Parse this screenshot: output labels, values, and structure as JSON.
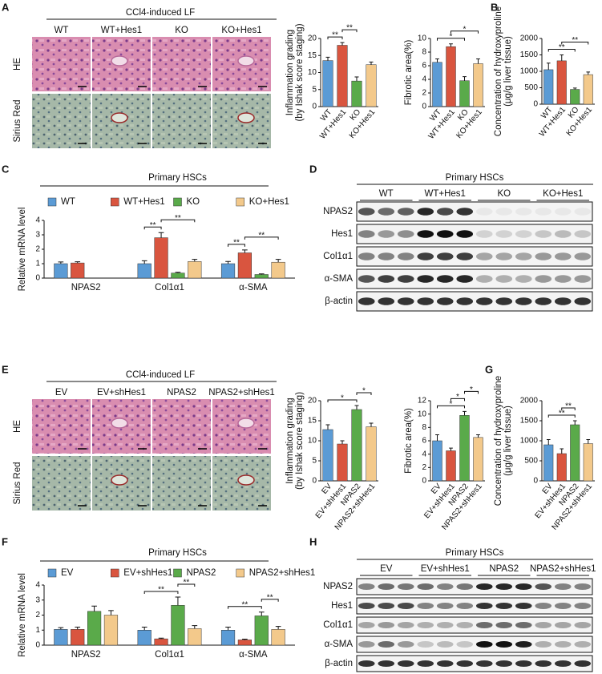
{
  "panels": {
    "A": {
      "letter": "A",
      "title": "CCl4-induced LF",
      "columns": [
        "WT",
        "WT+Hes1",
        "KO",
        "KO+Hes1"
      ],
      "rows": [
        "HE",
        "Sirius Red"
      ]
    },
    "B": {
      "letter": "B"
    },
    "C": {
      "letter": "C"
    },
    "D": {
      "letter": "D",
      "title": "Primary HSCs",
      "groups": [
        "WT",
        "WT+Hes1",
        "KO",
        "KO+Hes1"
      ],
      "rows": [
        "NPAS2",
        "Hes1",
        "Col1α1",
        "α-SMA",
        "β-actin"
      ]
    },
    "E": {
      "letter": "E",
      "title": "CCl4-induced LF",
      "columns": [
        "EV",
        "EV+shHes1",
        "NPAS2",
        "NPAS2+shHes1"
      ],
      "rows": [
        "HE",
        "Sirius Red"
      ]
    },
    "F": {
      "letter": "F"
    },
    "G": {
      "letter": "G"
    },
    "H": {
      "letter": "H",
      "title": "Primary HSCs",
      "groups": [
        "EV",
        "EV+shHes1",
        "NPAS2",
        "NPAS2+shHes1"
      ],
      "rows": [
        "NPAS2",
        "Hes1",
        "Col1α1",
        "α-SMA",
        "β-actin"
      ]
    }
  },
  "chart_data": [
    {
      "type": "bar",
      "ylabel": [
        "Inflammation grading",
        "(by Ishak score staging)"
      ],
      "categories": [
        "WT",
        "WT+Hes1",
        "KO",
        "KO+Hes1"
      ],
      "values": [
        13.5,
        18,
        7.5,
        12.3
      ],
      "errors": [
        1,
        0.8,
        1.2,
        0.8
      ],
      "colors": [
        "#5b9bd5",
        "#d9553f",
        "#5aaa4a",
        "#f3c98b"
      ],
      "ylim": [
        0,
        20
      ],
      "yticks": [
        0,
        5,
        10,
        15,
        20
      ],
      "significance": [
        {
          "from": 0,
          "to": 1,
          "label": "**"
        },
        {
          "from": 1,
          "to": 2,
          "label": "**"
        }
      ]
    },
    {
      "type": "bar",
      "ylabel": [
        "Fibrotic area(%)"
      ],
      "categories": [
        "WT",
        "WT+Hes1",
        "KO",
        "KO+Hes1"
      ],
      "values": [
        6.5,
        8.8,
        3.8,
        6.3
      ],
      "errors": [
        0.5,
        0.4,
        0.6,
        0.7
      ],
      "colors": [
        "#5b9bd5",
        "#d9553f",
        "#5aaa4a",
        "#f3c98b"
      ],
      "ylim": [
        0,
        10
      ],
      "yticks": [
        0,
        2,
        4,
        6,
        8,
        10
      ],
      "significance": [
        {
          "from": 0,
          "to": 2,
          "label": "*"
        },
        {
          "from": 1,
          "to": 3,
          "label": "*"
        }
      ]
    },
    {
      "type": "bar",
      "ylabel": [
        "Concentration of hydroxyproline",
        "(μg/g liver tissue)"
      ],
      "categories": [
        "WT",
        "WT+Hes1",
        "KO",
        "KO+Hes1"
      ],
      "values": [
        1050,
        1320,
        450,
        900
      ],
      "errors": [
        200,
        180,
        40,
        80
      ],
      "colors": [
        "#5b9bd5",
        "#d9553f",
        "#5aaa4a",
        "#f3c98b"
      ],
      "ylim": [
        0,
        2000
      ],
      "yticks": [
        0,
        500,
        1000,
        1500,
        2000
      ],
      "significance": [
        {
          "from": 0,
          "to": 2,
          "label": "**"
        },
        {
          "from": 1,
          "to": 3,
          "label": "**"
        }
      ]
    },
    {
      "type": "bar",
      "title": "Primary HSCs",
      "ylabel": [
        "Relative mRNA level"
      ],
      "categories": [
        "NPAS2",
        "Col1α1",
        "α-SMA"
      ],
      "series": [
        {
          "name": "WT",
          "color": "#5b9bd5",
          "values": [
            1,
            1,
            1
          ],
          "errors": [
            0.12,
            0.2,
            0.15
          ]
        },
        {
          "name": "WT+Hes1",
          "color": "#d9553f",
          "values": [
            1.05,
            2.8,
            1.75
          ],
          "errors": [
            0.08,
            0.35,
            0.2
          ]
        },
        {
          "name": "KO",
          "color": "#5aaa4a",
          "values": [
            null,
            0.35,
            0.25
          ],
          "errors": [
            null,
            0.05,
            0.04
          ]
        },
        {
          "name": "KO+Hes1",
          "color": "#f3c98b",
          "values": [
            null,
            1.15,
            1.1
          ],
          "errors": [
            null,
            0.15,
            0.2
          ]
        }
      ],
      "ylim": [
        0,
        4
      ],
      "yticks": [
        0,
        1,
        2,
        3,
        4
      ],
      "significance": [
        {
          "category": 1,
          "from": 0,
          "to": 1,
          "label": "**"
        },
        {
          "category": 1,
          "from": 1,
          "to": 3,
          "label": "**"
        },
        {
          "category": 2,
          "from": 0,
          "to": 1,
          "label": "**"
        },
        {
          "category": 2,
          "from": 1,
          "to": 3,
          "label": "**"
        }
      ]
    },
    {
      "type": "bar",
      "ylabel": [
        "Inflammation grading",
        "(by Ishak score staging)"
      ],
      "categories": [
        "EV",
        "EV+shHes1",
        "NPAS2",
        "NPAS2+shHes1"
      ],
      "values": [
        12.8,
        9.2,
        17.8,
        13.5
      ],
      "errors": [
        1.2,
        0.8,
        1,
        0.9
      ],
      "colors": [
        "#5b9bd5",
        "#d9553f",
        "#5aaa4a",
        "#f3c98b"
      ],
      "ylim": [
        0,
        20
      ],
      "yticks": [
        0,
        5,
        10,
        15,
        20
      ],
      "significance": [
        {
          "from": 0,
          "to": 2,
          "label": "*"
        },
        {
          "from": 2,
          "to": 3,
          "label": "*"
        }
      ]
    },
    {
      "type": "bar",
      "ylabel": [
        "Fibrotic area(%)"
      ],
      "categories": [
        "EV",
        "EV+shHes1",
        "NPAS2",
        "NPAS2+shHes1"
      ],
      "values": [
        6,
        4.5,
        9.8,
        6.5
      ],
      "errors": [
        0.9,
        0.4,
        0.6,
        0.4
      ],
      "colors": [
        "#5b9bd5",
        "#d9553f",
        "#5aaa4a",
        "#f3c98b"
      ],
      "ylim": [
        0,
        12
      ],
      "yticks": [
        0,
        2,
        4,
        6,
        8,
        10,
        12
      ],
      "significance": [
        {
          "from": 0,
          "to": 2,
          "label": "*"
        },
        {
          "from": 1,
          "to": 2,
          "label": "*"
        },
        {
          "from": 2,
          "to": 3,
          "label": "*"
        }
      ]
    },
    {
      "type": "bar",
      "ylabel": [
        "Concentration of hydroxyproline",
        "(μg/g liver tissue)"
      ],
      "categories": [
        "EV",
        "EV+shHes1",
        "NPAS2",
        "NPAS2+shHes1"
      ],
      "values": [
        900,
        680,
        1400,
        930
      ],
      "errors": [
        130,
        120,
        100,
        100
      ],
      "colors": [
        "#5b9bd5",
        "#d9553f",
        "#5aaa4a",
        "#f3c98b"
      ],
      "ylim": [
        0,
        2000
      ],
      "yticks": [
        0,
        500,
        1000,
        1500,
        2000
      ],
      "significance": [
        {
          "from": 0,
          "to": 2,
          "label": "**"
        },
        {
          "from": 1,
          "to": 2,
          "label": "**"
        }
      ]
    },
    {
      "type": "bar",
      "title": "Primary HSCs",
      "ylabel": [
        "Relative mRNA level"
      ],
      "categories": [
        "NPAS2",
        "Col1α1",
        "α-SMA"
      ],
      "series": [
        {
          "name": "EV",
          "color": "#5b9bd5",
          "values": [
            1.05,
            1,
            1
          ],
          "errors": [
            0.12,
            0.2,
            0.2
          ]
        },
        {
          "name": "EV+shHes1",
          "color": "#d9553f",
          "values": [
            1.05,
            0.42,
            0.35
          ],
          "errors": [
            0.15,
            0.05,
            0.05
          ]
        },
        {
          "name": "NPAS2",
          "color": "#5aaa4a",
          "values": [
            2.25,
            2.65,
            1.95
          ],
          "errors": [
            0.35,
            0.55,
            0.25
          ]
        },
        {
          "name": "NPAS2+shHes1",
          "color": "#f3c98b",
          "values": [
            2,
            1.1,
            1.05
          ],
          "errors": [
            0.3,
            0.2,
            0.2
          ]
        }
      ],
      "ylim": [
        0,
        4
      ],
      "yticks": [
        0,
        1,
        2,
        3,
        4
      ],
      "significance": [
        {
          "category": 1,
          "from": 0,
          "to": 2,
          "label": "**"
        },
        {
          "category": 1,
          "from": 2,
          "to": 3,
          "label": "**"
        },
        {
          "category": 2,
          "from": 0,
          "to": 2,
          "label": "**"
        },
        {
          "category": 2,
          "from": 2,
          "to": 3,
          "label": "**"
        }
      ]
    }
  ]
}
